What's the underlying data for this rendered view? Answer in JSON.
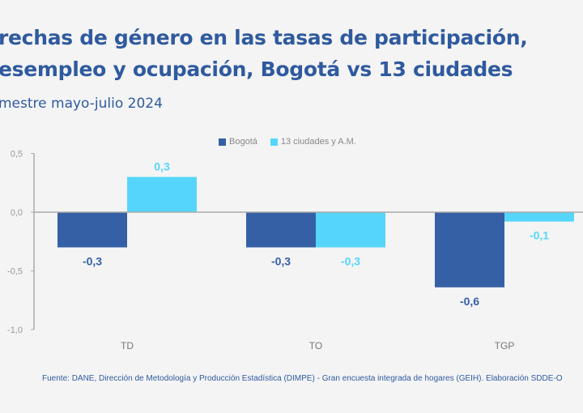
{
  "title_lines": [
    "rechas de género en las tasas de participación,",
    "esempleo y ocupación, Bogotá vs 13 ciudades"
  ],
  "subtitle": "mestre mayo-julio 2024",
  "source": "Fuente: DANE, Dirección de Metodología y Producción Estadística (DIMPE) - Gran encuesta integrada de hogares (GEIH). Elaboración SDDE-O",
  "chart_data": {
    "type": "bar",
    "categories": [
      "TD",
      "TO",
      "TGP"
    ],
    "series": [
      {
        "name": "Bogotá",
        "color": "#3560a5",
        "values": [
          -0.3,
          -0.3,
          -0.64
        ],
        "labels": [
          "-0,3",
          "-0,3",
          "-0,6"
        ]
      },
      {
        "name": "13 ciudades y A.M.",
        "color": "#56d5fb",
        "values": [
          0.3,
          -0.3,
          -0.08
        ],
        "labels": [
          "0,3",
          "-0,3",
          "-0,1"
        ]
      }
    ],
    "ylim": [
      -1.0,
      0.5
    ],
    "yticks": [
      "0,5",
      "0,0",
      "-0,5",
      "-1,0"
    ],
    "ytick_values": [
      0.5,
      0.0,
      -0.5,
      -1.0
    ],
    "legend": "top-center",
    "grid": false
  }
}
